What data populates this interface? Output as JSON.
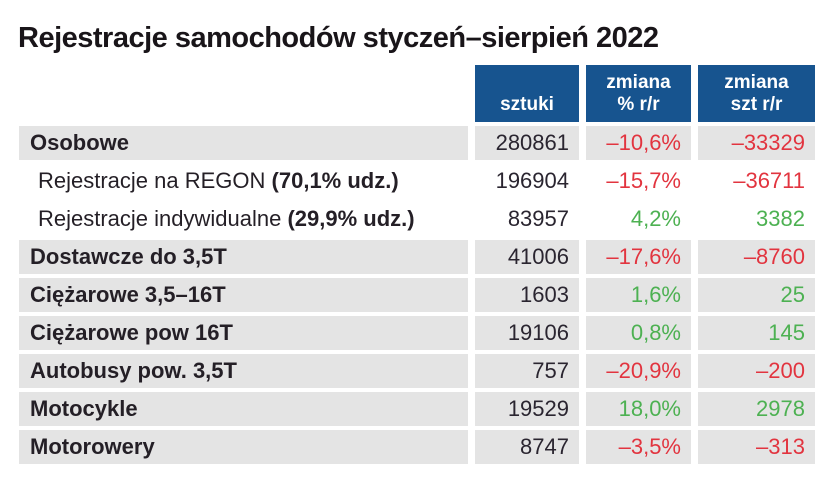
{
  "title": "Rejestracje samochodów styczeń–sierpień 2022",
  "colors": {
    "header_blue": "#17548f",
    "row_gray": "#e4e4e4",
    "negative_red": "#e2343f",
    "positive_green": "#4db152",
    "text_dark": "#241f26"
  },
  "table": {
    "headers": {
      "units": "sztuki",
      "change_pct_line1": "zmiana",
      "change_pct_line2": "% r/r",
      "change_units_line1": "zmiana",
      "change_units_line2": "szt r/r"
    },
    "rows": [
      {
        "label": "Osobowe",
        "label_bold": "",
        "units": "280861",
        "change_pct": "–10,6%",
        "change_units": "–33329"
      },
      {
        "label": "Rejestracje na REGON ",
        "label_bold": "(70,1% udz.)",
        "units": "196904",
        "change_pct": "–15,7%",
        "change_units": "–36711"
      },
      {
        "label": "Rejestracje indywidualne ",
        "label_bold": "(29,9% udz.)",
        "units": "83957",
        "change_pct": "4,2%",
        "change_units": "3382"
      },
      {
        "label": "Dostawcze do 3,5T",
        "label_bold": "",
        "units": "41006",
        "change_pct": "–17,6%",
        "change_units": "–8760"
      },
      {
        "label": "Ciężarowe 3,5–16T",
        "label_bold": "",
        "units": "1603",
        "change_pct": "1,6%",
        "change_units": "25"
      },
      {
        "label": "Ciężarowe pow 16T",
        "label_bold": "",
        "units": "19106",
        "change_pct": "0,8%",
        "change_units": "145"
      },
      {
        "label": "Autobusy pow. 3,5T",
        "label_bold": "",
        "units": "757",
        "change_pct": "–20,9%",
        "change_units": "–200"
      },
      {
        "label": "Motocykle",
        "label_bold": "",
        "units": "19529",
        "change_pct": "18,0%",
        "change_units": "2978"
      },
      {
        "label": "Motorowery",
        "label_bold": "",
        "units": "8747",
        "change_pct": "–3,5%",
        "change_units": "–313"
      }
    ]
  },
  "chart_data": {
    "type": "table",
    "title": "Rejestracje samochodów styczeń–sierpień 2022",
    "columns": [
      "",
      "sztuki",
      "zmiana % r/r",
      "zmiana szt r/r"
    ],
    "rows": [
      [
        "Osobowe",
        280861,
        -10.6,
        -33329
      ],
      [
        "Rejestracje na REGON (70,1% udz.)",
        196904,
        -15.7,
        -36711
      ],
      [
        "Rejestracje indywidualne (29,9% udz.)",
        83957,
        4.2,
        3382
      ],
      [
        "Dostawcze do 3,5T",
        41006,
        -17.6,
        -8760
      ],
      [
        "Ciężarowe 3,5–16T",
        1603,
        1.6,
        25
      ],
      [
        "Ciężarowe pow 16T",
        19106,
        0.8,
        145
      ],
      [
        "Autobusy pow. 3,5T",
        757,
        -20.9,
        -200
      ],
      [
        "Motocykle",
        19529,
        18.0,
        2978
      ],
      [
        "Motorowery",
        8747,
        -3.5,
        -313
      ]
    ]
  }
}
